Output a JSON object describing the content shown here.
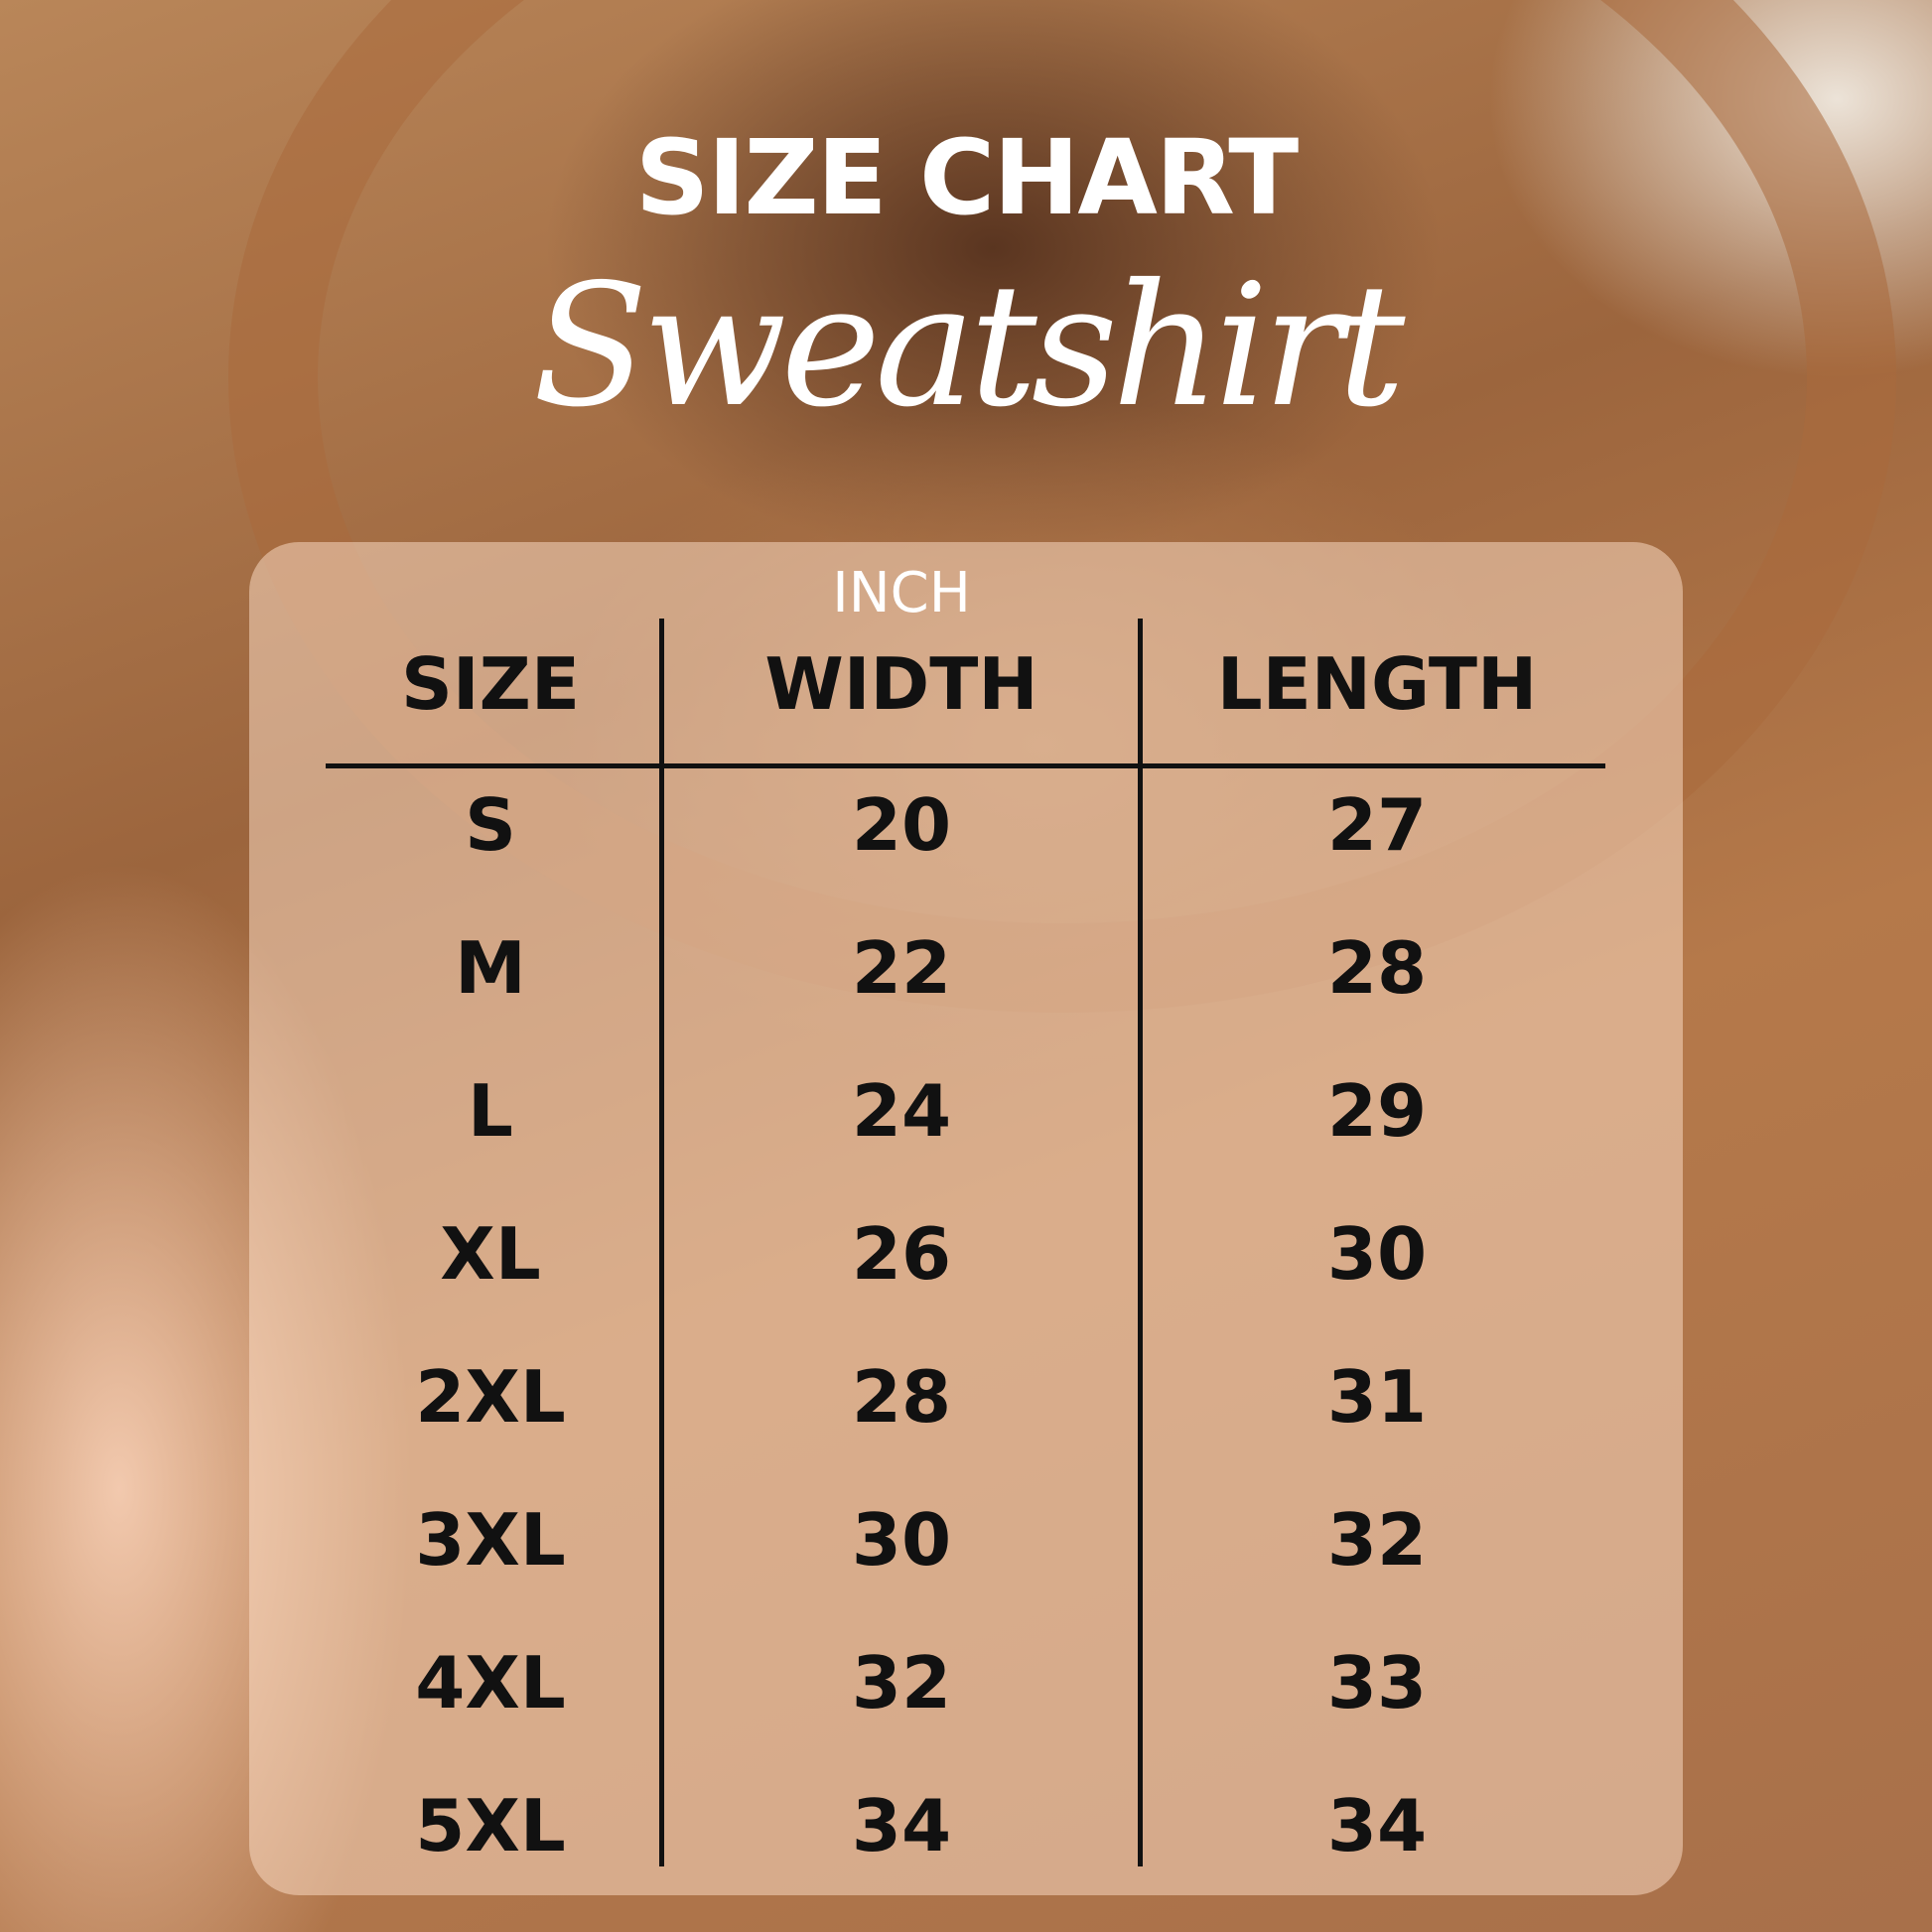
{
  "header": {
    "title": "SIZE CHART",
    "subtitle": "Sweatshirt"
  },
  "chart_data": {
    "type": "table",
    "unit": "INCH",
    "columns": [
      "SIZE",
      "WIDTH",
      "LENGTH"
    ],
    "rows": [
      [
        "S",
        "20",
        "27"
      ],
      [
        "M",
        "22",
        "28"
      ],
      [
        "L",
        "24",
        "29"
      ],
      [
        "XL",
        "26",
        "30"
      ],
      [
        "2XL",
        "28",
        "31"
      ],
      [
        "3XL",
        "30",
        "32"
      ],
      [
        "4XL",
        "32",
        "33"
      ],
      [
        "5XL",
        "34",
        "34"
      ]
    ]
  }
}
